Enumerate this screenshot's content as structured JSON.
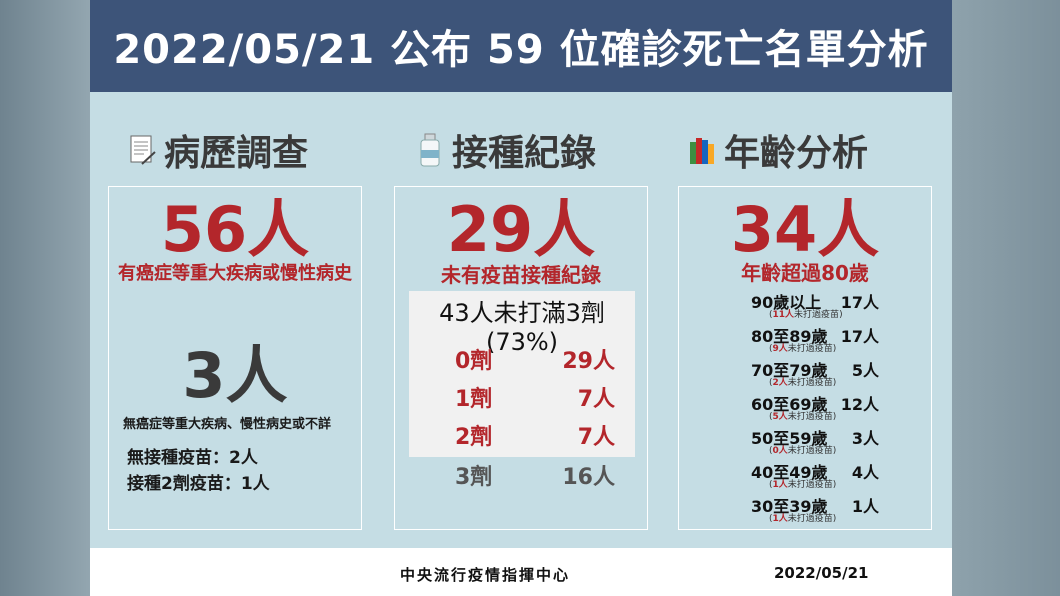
{
  "header": {
    "title": "2022/05/21 公布 59 位確診死亡名單分析"
  },
  "colors": {
    "header_bg": "#3d5479",
    "panel_bg": "#c5dde4",
    "accent_red": "#b3262b"
  },
  "sections": {
    "history": {
      "title": "病歷調查",
      "icon": "document-icon",
      "count_with": "56人",
      "desc_with": "有癌症等重大疾病或慢性病史",
      "count_without": "3人",
      "desc_without": "無癌症等重大疾病、慢性病史或不詳",
      "line1": "無接種疫苗：2人",
      "line2": "接種2劑疫苗：1人"
    },
    "vaccine": {
      "title": "接種紀錄",
      "icon": "vaccine-vial-icon",
      "count": "29人",
      "desc": "未有疫苗接種紀錄",
      "summary": "43人未打滿3劑(73%)",
      "doses": [
        {
          "dose": "0劑",
          "count": "29人"
        },
        {
          "dose": "1劑",
          "count": "7人"
        },
        {
          "dose": "2劑",
          "count": "7人"
        },
        {
          "dose": "3劑",
          "count": "16人"
        }
      ]
    },
    "age": {
      "title": "年齡分析",
      "icon": "books-icon",
      "count": "34人",
      "desc": "年齡超過80歲",
      "rows": [
        {
          "range": "90歲以上",
          "count": "17人",
          "note_num": "11人",
          "note_text": "未打過疫苗"
        },
        {
          "range": "80至89歲",
          "count": "17人",
          "note_num": "9人",
          "note_text": "未打過疫苗"
        },
        {
          "range": "70至79歲",
          "count": "5人",
          "note_num": "2人",
          "note_text": "未打過疫苗"
        },
        {
          "range": "60至69歲",
          "count": "12人",
          "note_num": "5人",
          "note_text": "未打過疫苗"
        },
        {
          "range": "50至59歲",
          "count": "3人",
          "note_num": "0人",
          "note_text": "未打過疫苗"
        },
        {
          "range": "40至49歲",
          "count": "4人",
          "note_num": "1人",
          "note_text": "未打過疫苗"
        },
        {
          "range": "30至39歲",
          "count": "1人",
          "note_num": "1人",
          "note_text": "未打過疫苗"
        }
      ]
    }
  },
  "footer": {
    "org": "中央流行疫情指揮中心",
    "date": "2022/05/21"
  }
}
